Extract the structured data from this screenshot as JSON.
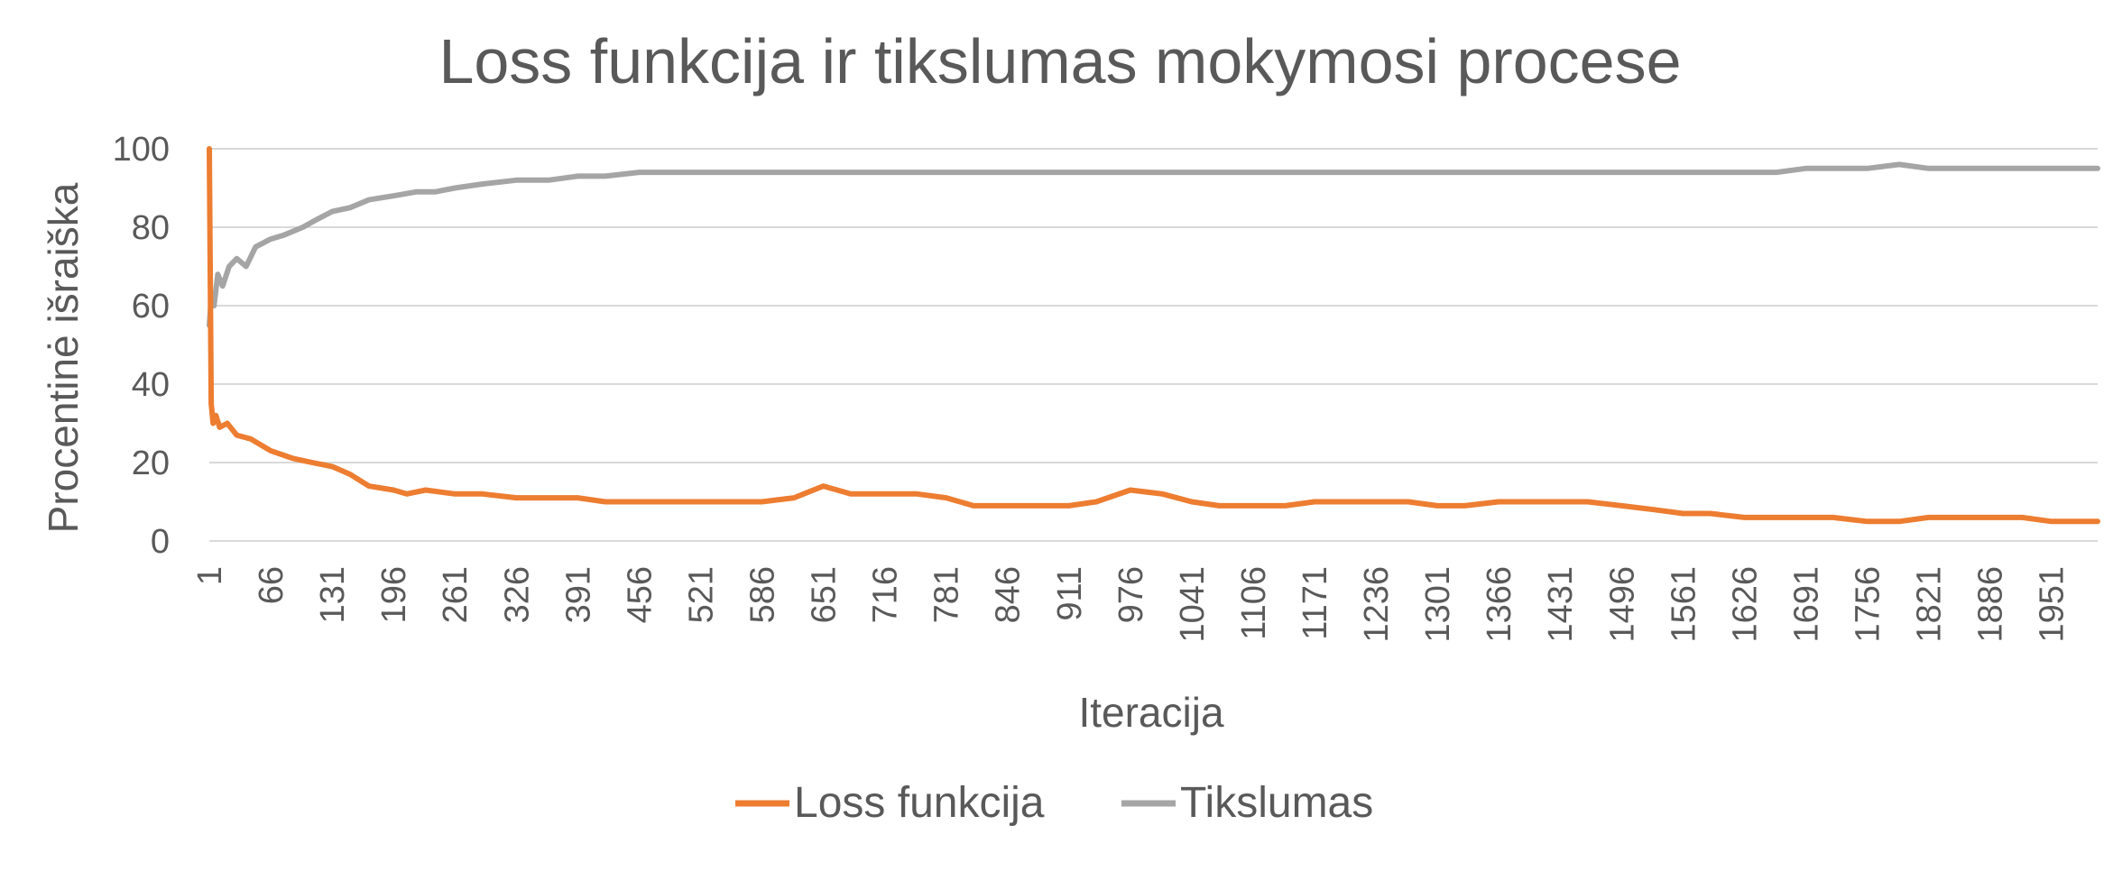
{
  "chart_data": {
    "type": "line",
    "title": "Loss funkcija ir tikslumas mokymosi procese",
    "xlabel": "Iteracija",
    "ylabel": "Procentinė išraiška",
    "ylim": [
      0,
      100
    ],
    "yticks": [
      "0",
      "20",
      "40",
      "60",
      "80",
      "100"
    ],
    "x_tick_labels": [
      "1",
      "66",
      "131",
      "196",
      "261",
      "326",
      "391",
      "456",
      "521",
      "586",
      "651",
      "716",
      "781",
      "846",
      "911",
      "976",
      "1041",
      "1106",
      "1171",
      "1236",
      "1301",
      "1366",
      "1431",
      "1496",
      "1561",
      "1626",
      "1691",
      "1756",
      "1821",
      "1886",
      "1951"
    ],
    "x_range": [
      1,
      2000
    ],
    "grid": true,
    "legend_position": "bottom",
    "series": [
      {
        "name": "Loss funkcija",
        "color": "#ED7D31",
        "x": [
          1,
          3,
          5,
          8,
          12,
          20,
          30,
          45,
          66,
          90,
          110,
          131,
          150,
          170,
          196,
          210,
          230,
          261,
          290,
          326,
          360,
          391,
          420,
          456,
          490,
          521,
          550,
          586,
          620,
          651,
          680,
          716,
          750,
          781,
          810,
          846,
          880,
          911,
          940,
          976,
          1010,
          1041,
          1070,
          1106,
          1140,
          1171,
          1200,
          1236,
          1270,
          1301,
          1330,
          1366,
          1400,
          1431,
          1460,
          1496,
          1530,
          1561,
          1590,
          1626,
          1660,
          1691,
          1720,
          1756,
          1790,
          1821,
          1850,
          1886,
          1920,
          1951,
          1980,
          2000
        ],
        "y": [
          100,
          35,
          30,
          32,
          29,
          30,
          27,
          26,
          23,
          21,
          20,
          19,
          17,
          14,
          13,
          12,
          13,
          12,
          12,
          11,
          11,
          11,
          10,
          10,
          10,
          10,
          10,
          10,
          11,
          14,
          12,
          12,
          12,
          11,
          9,
          9,
          9,
          9,
          10,
          13,
          12,
          10,
          9,
          9,
          9,
          10,
          10,
          10,
          10,
          9,
          9,
          10,
          10,
          10,
          10,
          9,
          8,
          7,
          7,
          6,
          6,
          6,
          6,
          5,
          5,
          6,
          6,
          6,
          6,
          5,
          5,
          5
        ]
      },
      {
        "name": "Tikslumas",
        "color": "#A5A5A5",
        "x": [
          1,
          3,
          6,
          10,
          15,
          22,
          30,
          40,
          50,
          66,
          80,
          100,
          115,
          131,
          150,
          170,
          196,
          220,
          240,
          261,
          290,
          326,
          360,
          391,
          420,
          456,
          490,
          521,
          550,
          586,
          620,
          651,
          680,
          716,
          750,
          781,
          810,
          846,
          880,
          911,
          940,
          976,
          1010,
          1041,
          1070,
          1106,
          1140,
          1171,
          1200,
          1236,
          1270,
          1301,
          1330,
          1366,
          1400,
          1431,
          1460,
          1496,
          1530,
          1561,
          1590,
          1626,
          1660,
          1691,
          1720,
          1756,
          1790,
          1821,
          1850,
          1886,
          1920,
          1951,
          1980,
          2000
        ],
        "y": [
          55,
          62,
          60,
          68,
          65,
          70,
          72,
          70,
          75,
          77,
          78,
          80,
          82,
          84,
          85,
          87,
          88,
          89,
          89,
          90,
          91,
          92,
          92,
          93,
          93,
          94,
          94,
          94,
          94,
          94,
          94,
          94,
          94,
          94,
          94,
          94,
          94,
          94,
          94,
          94,
          94,
          94,
          94,
          94,
          94,
          94,
          94,
          94,
          94,
          94,
          94,
          94,
          94,
          94,
          94,
          94,
          94,
          94,
          94,
          94,
          94,
          94,
          94,
          95,
          95,
          95,
          96,
          95,
          95,
          95,
          95,
          95,
          95,
          95
        ]
      }
    ]
  }
}
